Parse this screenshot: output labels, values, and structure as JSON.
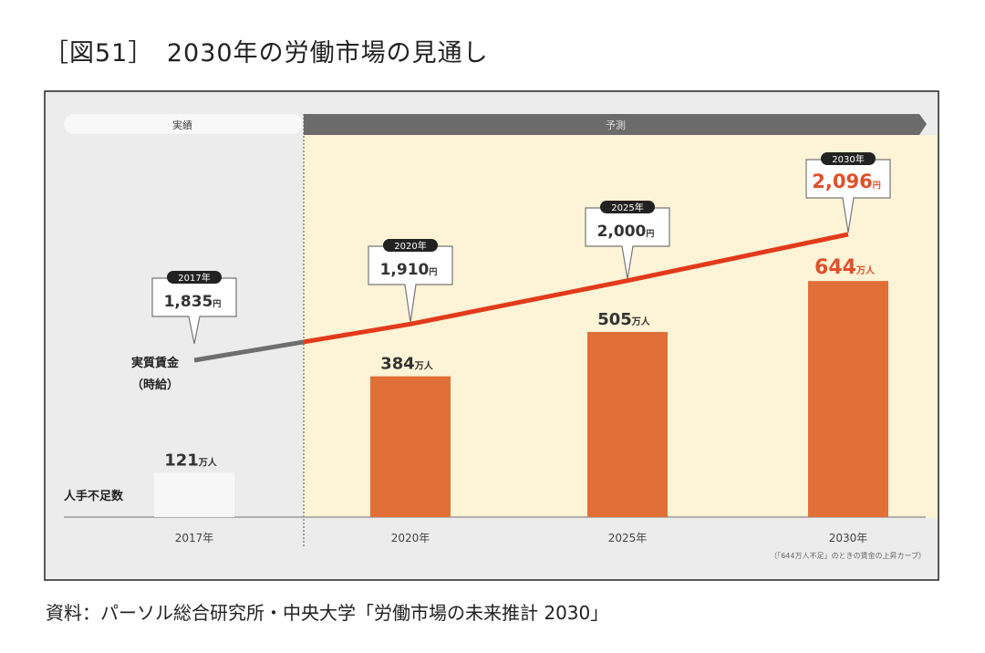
{
  "title": "［図51］　2030年の労働市場の見通し",
  "source": "資料：パーソル総合研究所・中央大学「労働市場の未来推計 2030」",
  "colors": {
    "bar": "#e07038",
    "line_forecast": "#e23a1a",
    "line_actual": "#6e6e6e",
    "bg_actual": "#ececec",
    "bg_forecast": "#fdf3d6",
    "highlight": "#e0502a"
  },
  "chart_data": {
    "type": "bar+line",
    "phases": {
      "actual": "実績",
      "forecast": "予測"
    },
    "categories": [
      "2017年",
      "2020年",
      "2025年",
      "2030年"
    ],
    "bar_series": {
      "name": "人手不足数",
      "values": [
        121,
        384,
        505,
        644
      ],
      "unit": "万人",
      "labels": [
        "121",
        "384",
        "505",
        "644"
      ]
    },
    "line_series": {
      "name_line1": "実質賃金",
      "name_line2": "（時給）",
      "values": [
        1835,
        1910,
        2000,
        2096
      ],
      "unit": "円",
      "labels": [
        "1,835",
        "1,910",
        "2,000",
        "2,096"
      ]
    },
    "footnote": "「644万人不足」のときの賃金の上昇カーブ"
  }
}
